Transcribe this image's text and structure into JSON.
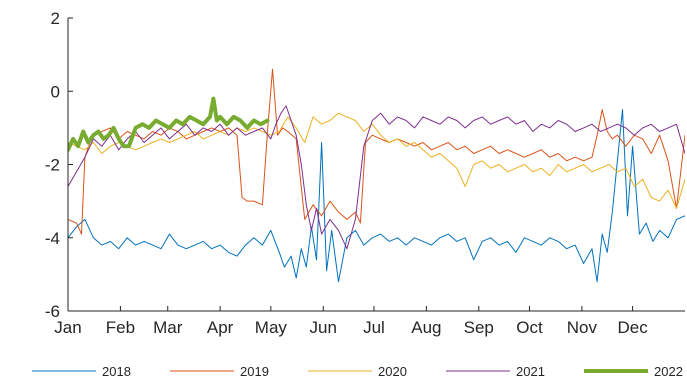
{
  "chart_data": {
    "type": "line",
    "title": "",
    "xlabel": "",
    "ylabel": "",
    "xlim": [
      0,
      365
    ],
    "ylim": [
      -6,
      2
    ],
    "y_ticks": [
      2,
      0,
      -2,
      -4,
      -6
    ],
    "x_ticks": [
      {
        "label": "Jan",
        "day": 0
      },
      {
        "label": "Feb",
        "day": 31
      },
      {
        "label": "Mar",
        "day": 59
      },
      {
        "label": "Apr",
        "day": 90
      },
      {
        "label": "May",
        "day": 120
      },
      {
        "label": "Jun",
        "day": 151
      },
      {
        "label": "Jul",
        "day": 181
      },
      {
        "label": "Aug",
        "day": 212
      },
      {
        "label": "Sep",
        "day": 243
      },
      {
        "label": "Oct",
        "day": 273
      },
      {
        "label": "Nov",
        "day": 304
      },
      {
        "label": "Dec",
        "day": 334
      }
    ],
    "grid": false,
    "legend_position": "bottom",
    "series": [
      {
        "name": "2018",
        "color": "#0072BD",
        "width": 1,
        "x": [
          0,
          5,
          10,
          15,
          20,
          25,
          30,
          35,
          40,
          45,
          50,
          55,
          60,
          65,
          70,
          75,
          80,
          85,
          90,
          95,
          100,
          105,
          110,
          115,
          120,
          125,
          128,
          132,
          135,
          138,
          141,
          144,
          147,
          150,
          153,
          156,
          160,
          165,
          170,
          175,
          180,
          185,
          190,
          195,
          200,
          205,
          210,
          215,
          220,
          225,
          230,
          235,
          240,
          245,
          250,
          255,
          260,
          265,
          270,
          275,
          280,
          285,
          290,
          295,
          300,
          305,
          310,
          313,
          316,
          319,
          322,
          325,
          328,
          331,
          334,
          338,
          342,
          346,
          350,
          355,
          360,
          365
        ],
        "y": [
          -4.0,
          -3.7,
          -3.5,
          -4.0,
          -4.2,
          -4.1,
          -4.3,
          -4.0,
          -4.2,
          -4.1,
          -4.2,
          -4.3,
          -3.9,
          -4.2,
          -4.3,
          -4.2,
          -4.1,
          -4.3,
          -4.2,
          -4.4,
          -4.5,
          -4.2,
          -4.0,
          -4.2,
          -3.8,
          -4.4,
          -4.8,
          -4.5,
          -5.1,
          -4.3,
          -4.8,
          -3.7,
          -4.6,
          -1.4,
          -4.9,
          -3.8,
          -5.2,
          -4.0,
          -3.8,
          -4.2,
          -4.0,
          -3.9,
          -4.1,
          -4.0,
          -4.2,
          -4.0,
          -4.1,
          -4.2,
          -4.0,
          -3.9,
          -4.1,
          -4.0,
          -4.6,
          -4.1,
          -4.0,
          -4.2,
          -4.1,
          -4.4,
          -4.0,
          -4.1,
          -4.2,
          -4.0,
          -4.1,
          -4.3,
          -4.2,
          -4.7,
          -4.3,
          -5.2,
          -3.9,
          -4.4,
          -3.3,
          -1.9,
          -0.5,
          -3.4,
          -1.5,
          -3.9,
          -3.6,
          -4.1,
          -3.8,
          -4.0,
          -3.5,
          -3.4
        ]
      },
      {
        "name": "2019",
        "color": "#D95319",
        "width": 1,
        "x": [
          0,
          5,
          8,
          10,
          13,
          16,
          20,
          25,
          30,
          35,
          40,
          45,
          50,
          55,
          60,
          65,
          70,
          75,
          80,
          85,
          90,
          95,
          100,
          103,
          106,
          110,
          115,
          118,
          121,
          124,
          127,
          130,
          135,
          140,
          145,
          150,
          155,
          160,
          165,
          170,
          173,
          176,
          180,
          185,
          190,
          195,
          200,
          205,
          210,
          215,
          220,
          225,
          230,
          235,
          240,
          245,
          250,
          255,
          260,
          265,
          270,
          275,
          280,
          285,
          290,
          295,
          300,
          305,
          310,
          313,
          316,
          319,
          322,
          325,
          330,
          335,
          340,
          345,
          350,
          355,
          360,
          365
        ],
        "y": [
          -3.5,
          -3.6,
          -3.9,
          -1.8,
          -1.4,
          -1.2,
          -1.1,
          -1.0,
          -1.3,
          -1.1,
          -1.2,
          -1.3,
          -1.1,
          -1.2,
          -1.0,
          -1.1,
          -1.3,
          -1.2,
          -1.1,
          -1.0,
          -1.1,
          -1.0,
          -1.2,
          -2.9,
          -3.0,
          -3.0,
          -3.1,
          -1.1,
          0.6,
          -1.2,
          -1.0,
          -1.1,
          -1.3,
          -3.5,
          -3.1,
          -3.4,
          -3.0,
          -3.3,
          -3.5,
          -3.3,
          -3.6,
          -1.4,
          -1.2,
          -1.3,
          -1.4,
          -1.3,
          -1.4,
          -1.5,
          -1.4,
          -1.6,
          -1.5,
          -1.4,
          -1.6,
          -1.5,
          -1.7,
          -1.6,
          -1.5,
          -1.7,
          -1.6,
          -1.7,
          -1.8,
          -1.7,
          -1.6,
          -1.8,
          -1.7,
          -1.9,
          -1.8,
          -1.9,
          -1.8,
          -1.2,
          -0.5,
          -1.1,
          -1.3,
          -1.2,
          -1.5,
          -1.2,
          -1.3,
          -1.7,
          -1.2,
          -1.9,
          -3.2,
          -1.2
        ]
      },
      {
        "name": "2020",
        "color": "#EDB120",
        "width": 1,
        "x": [
          0,
          5,
          10,
          15,
          20,
          25,
          30,
          35,
          40,
          45,
          50,
          55,
          60,
          65,
          70,
          75,
          80,
          85,
          90,
          95,
          100,
          105,
          110,
          115,
          120,
          125,
          130,
          135,
          140,
          145,
          150,
          155,
          160,
          165,
          170,
          175,
          180,
          185,
          190,
          195,
          200,
          205,
          210,
          215,
          220,
          225,
          230,
          235,
          240,
          245,
          250,
          255,
          260,
          265,
          270,
          275,
          280,
          285,
          290,
          295,
          300,
          305,
          310,
          315,
          320,
          325,
          330,
          335,
          340,
          345,
          350,
          355,
          360,
          365
        ],
        "y": [
          -1.4,
          -1.5,
          -1.6,
          -1.4,
          -1.7,
          -1.5,
          -1.4,
          -1.5,
          -1.6,
          -1.5,
          -1.4,
          -1.3,
          -1.4,
          -1.3,
          -1.2,
          -1.1,
          -1.3,
          -1.2,
          -1.1,
          -1.2,
          -1.0,
          -1.1,
          -1.0,
          -1.1,
          -1.2,
          -1.1,
          -0.7,
          -1.0,
          -1.4,
          -0.7,
          -0.9,
          -0.8,
          -0.6,
          -0.7,
          -0.8,
          -1.1,
          -0.9,
          -1.2,
          -1.4,
          -1.3,
          -1.5,
          -1.4,
          -1.6,
          -1.8,
          -1.7,
          -1.9,
          -2.1,
          -2.6,
          -2.0,
          -1.9,
          -2.1,
          -2.0,
          -2.2,
          -2.1,
          -2.0,
          -2.2,
          -2.1,
          -2.3,
          -2.0,
          -2.2,
          -2.1,
          -2.0,
          -2.2,
          -2.1,
          -2.0,
          -2.2,
          -2.1,
          -2.6,
          -2.4,
          -2.9,
          -3.0,
          -2.7,
          -3.2,
          -2.4
        ]
      },
      {
        "name": "2021",
        "color": "#7E2F8E",
        "width": 1,
        "x": [
          0,
          5,
          10,
          15,
          20,
          25,
          30,
          35,
          40,
          45,
          50,
          55,
          60,
          65,
          70,
          75,
          80,
          85,
          90,
          95,
          100,
          105,
          110,
          115,
          120,
          123,
          126,
          129,
          132,
          135,
          138,
          141,
          144,
          147,
          150,
          155,
          160,
          165,
          170,
          175,
          180,
          185,
          190,
          195,
          200,
          205,
          210,
          215,
          220,
          225,
          230,
          235,
          240,
          245,
          250,
          255,
          260,
          265,
          270,
          275,
          280,
          285,
          290,
          295,
          300,
          305,
          310,
          315,
          320,
          325,
          330,
          335,
          340,
          345,
          350,
          355,
          360,
          365
        ],
        "y": [
          -2.6,
          -2.2,
          -1.8,
          -1.3,
          -1.5,
          -1.2,
          -1.6,
          -1.3,
          -1.1,
          -1.4,
          -1.2,
          -1.0,
          -1.3,
          -1.1,
          -0.9,
          -1.2,
          -1.0,
          -1.1,
          -0.9,
          -1.2,
          -1.0,
          -1.2,
          -1.1,
          -1.0,
          -1.3,
          -0.9,
          -0.6,
          -0.4,
          -0.8,
          -1.2,
          -2.0,
          -3.1,
          -3.8,
          -3.2,
          -3.9,
          -3.5,
          -3.8,
          -4.3,
          -3.5,
          -1.5,
          -0.8,
          -0.6,
          -0.9,
          -0.7,
          -0.8,
          -1.0,
          -0.7,
          -0.8,
          -0.9,
          -0.7,
          -0.8,
          -1.0,
          -0.8,
          -0.7,
          -0.9,
          -0.8,
          -0.7,
          -0.9,
          -0.8,
          -1.1,
          -0.9,
          -1.0,
          -0.8,
          -0.9,
          -1.1,
          -1.0,
          -0.9,
          -1.1,
          -1.0,
          -0.9,
          -1.0,
          -1.2,
          -1.0,
          -0.9,
          -1.1,
          -1.0,
          -0.9,
          -1.7
        ]
      },
      {
        "name": "2022",
        "color": "#77AC30",
        "width": 4,
        "x": [
          0,
          3,
          6,
          9,
          12,
          15,
          18,
          21,
          24,
          27,
          30,
          33,
          36,
          40,
          44,
          48,
          52,
          56,
          60,
          64,
          68,
          72,
          76,
          80,
          84,
          86,
          88,
          90,
          94,
          98,
          102,
          106,
          110,
          114,
          118
        ],
        "y": [
          -1.6,
          -1.3,
          -1.5,
          -1.1,
          -1.4,
          -1.2,
          -1.1,
          -1.3,
          -1.2,
          -1.0,
          -1.3,
          -1.5,
          -1.5,
          -1.0,
          -0.9,
          -1.0,
          -0.8,
          -0.9,
          -1.0,
          -0.8,
          -0.9,
          -0.7,
          -0.8,
          -0.9,
          -0.7,
          -0.2,
          -0.8,
          -0.7,
          -0.9,
          -0.7,
          -0.8,
          -1.0,
          -0.8,
          -0.9,
          -0.8
        ]
      }
    ]
  }
}
